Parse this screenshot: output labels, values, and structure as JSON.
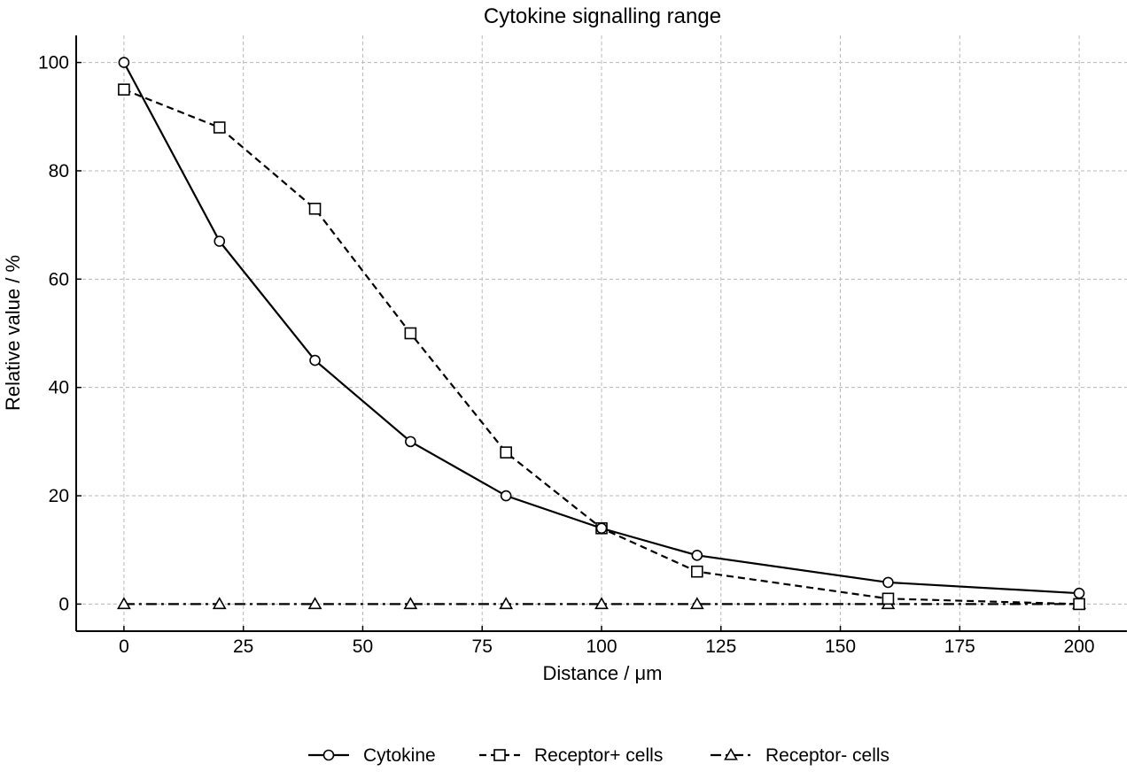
{
  "chart_data": {
    "type": "line",
    "title": "Cytokine signalling range",
    "xlabel": "Distance / μm",
    "ylabel": "Relative value / %",
    "xlim": [
      -10,
      210
    ],
    "ylim": [
      -5,
      105
    ],
    "xticks": [
      0,
      25,
      50,
      75,
      100,
      125,
      150,
      175,
      200
    ],
    "yticks": [
      0,
      20,
      40,
      60,
      80,
      100
    ],
    "grid": true,
    "legend_position": "bottom-center",
    "series": [
      {
        "name": "Cytokine",
        "marker": "circle",
        "line_style": "solid",
        "color": "#000000",
        "x": [
          0,
          20,
          40,
          60,
          80,
          100,
          120,
          160,
          200
        ],
        "y": [
          100,
          67,
          45,
          30,
          20,
          14,
          9,
          4,
          2
        ]
      },
      {
        "name": "Receptor+ cells",
        "marker": "square",
        "line_style": "dashed",
        "color": "#000000",
        "x": [
          0,
          20,
          40,
          60,
          80,
          100,
          120,
          160,
          200
        ],
        "y": [
          95,
          88,
          73,
          50,
          28,
          14,
          6,
          1,
          0
        ]
      },
      {
        "name": "Receptor- cells",
        "marker": "triangle",
        "line_style": "dashdot",
        "color": "#000000",
        "x": [
          0,
          20,
          40,
          60,
          80,
          100,
          120,
          160,
          200
        ],
        "y": [
          0,
          0,
          0,
          0,
          0,
          0,
          0,
          0,
          0
        ]
      }
    ]
  }
}
